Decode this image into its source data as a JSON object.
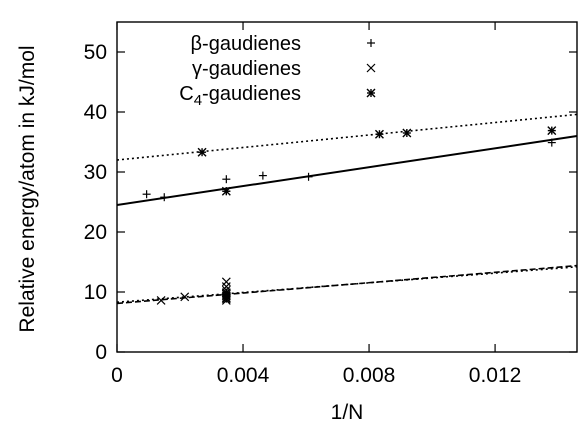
{
  "chart_data": {
    "type": "scatter",
    "xlabel": "1/N",
    "ylabel": "Relative energy/atom in kJ/mol",
    "xlim": [
      0,
      0.0146
    ],
    "ylim": [
      0,
      55
    ],
    "x_ticks": [
      {
        "value": 0,
        "label": "0"
      },
      {
        "value": 0.004,
        "label": "0.004"
      },
      {
        "value": 0.008,
        "label": "0.008"
      },
      {
        "value": 0.012,
        "label": "0.012"
      }
    ],
    "y_ticks": [
      {
        "value": 0,
        "label": "0"
      },
      {
        "value": 10,
        "label": "10"
      },
      {
        "value": 20,
        "label": "20"
      },
      {
        "value": 30,
        "label": "30"
      },
      {
        "value": 40,
        "label": "40"
      },
      {
        "value": 50,
        "label": "50"
      }
    ],
    "legend": {
      "position": "top-left",
      "entries": [
        {
          "name": "β-gaudienes",
          "marker": "plus"
        },
        {
          "name": "γ-gaudienes",
          "marker": "cross"
        },
        {
          "name": "C4-gaudienes",
          "marker": "star"
        }
      ]
    },
    "series": [
      {
        "name": "β-gaudienes",
        "marker": "plus",
        "points": [
          [
            0.00094,
            26.3
          ],
          [
            0.0015,
            25.8
          ],
          [
            0.00347,
            28.8
          ],
          [
            0.00347,
            26.8
          ],
          [
            0.00463,
            29.4
          ],
          [
            0.00608,
            29.2
          ],
          [
            0.0138,
            34.9
          ]
        ]
      },
      {
        "name": "γ-gaudienes",
        "marker": "cross",
        "points": [
          [
            0.0014,
            8.6
          ],
          [
            0.00215,
            9.2
          ],
          [
            0.00347,
            11.7
          ],
          [
            0.00347,
            10.9
          ],
          [
            0.00347,
            10.3
          ],
          [
            0.00347,
            9.6
          ],
          [
            0.00347,
            9.0
          ],
          [
            0.00347,
            8.6
          ]
        ]
      },
      {
        "name": "C4-gaudienes",
        "marker": "star",
        "points": [
          [
            0.0027,
            33.3
          ],
          [
            0.00347,
            26.8
          ],
          [
            0.00347,
            9.9
          ],
          [
            0.00347,
            9.3
          ],
          [
            0.00347,
            8.9
          ],
          [
            0.00833,
            36.3
          ],
          [
            0.0092,
            36.5
          ],
          [
            0.0138,
            36.9
          ]
        ]
      }
    ],
    "fit_lines": [
      {
        "style": "dotted",
        "x": [
          0,
          0.0146
        ],
        "y": [
          32.0,
          39.6
        ]
      },
      {
        "style": "solid",
        "x": [
          0,
          0.0146
        ],
        "y": [
          24.5,
          36.0
        ]
      },
      {
        "style": "dashed",
        "x": [
          0,
          0.0146
        ],
        "y": [
          8.1,
          14.4
        ]
      },
      {
        "style": "dotted",
        "x": [
          0,
          0.0146
        ],
        "y": [
          8.3,
          14.2
        ]
      }
    ]
  }
}
